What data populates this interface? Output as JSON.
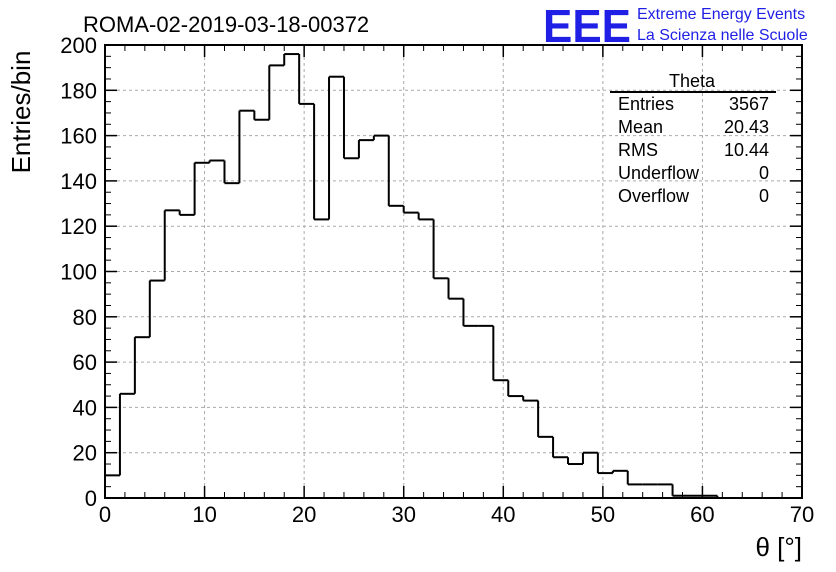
{
  "chart_data": {
    "type": "histogram",
    "title": "ROMA-02-2019-03-18-00372",
    "xlabel": "θ [°]",
    "ylabel": "Entries/bin",
    "xlim": [
      0,
      70
    ],
    "ylim": [
      0,
      200
    ],
    "grid": true,
    "bin_width": 1.5,
    "x_ticks": [
      0,
      10,
      20,
      30,
      40,
      50,
      60,
      70
    ],
    "y_ticks": [
      0,
      20,
      40,
      60,
      80,
      100,
      120,
      140,
      160,
      180,
      200
    ],
    "bins_start": 0,
    "values": [
      10,
      46,
      71,
      96,
      127,
      125,
      148,
      149,
      139,
      171,
      167,
      191,
      196,
      174,
      123,
      186,
      150,
      158,
      160,
      129,
      126,
      123,
      97,
      88,
      76,
      76,
      52,
      45,
      43,
      27,
      18,
      15,
      20,
      11,
      12,
      6,
      6,
      6,
      1,
      1,
      1
    ]
  },
  "stats_box": {
    "name": "Theta",
    "rows": [
      {
        "label": "Entries",
        "value": "3567"
      },
      {
        "label": "Mean",
        "value": "20.43"
      },
      {
        "label": "RMS",
        "value": "10.44"
      },
      {
        "label": "Underflow",
        "value": "0"
      },
      {
        "label": "Overflow",
        "value": "0"
      }
    ]
  },
  "logo": {
    "mark": "EEE",
    "line1": "Extreme Energy Events",
    "line2": "La Scienza nelle Scuole",
    "color": "#1f1fe6"
  }
}
